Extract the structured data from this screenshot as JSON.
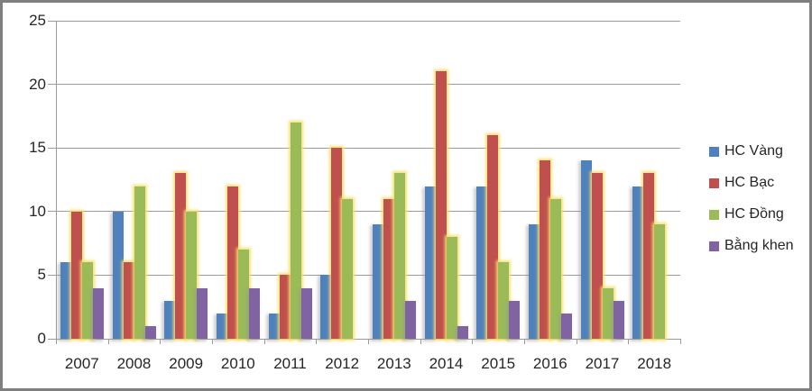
{
  "chart_data": {
    "type": "bar",
    "title": "",
    "xlabel": "",
    "ylabel": "",
    "categories": [
      "2007",
      "2008",
      "2009",
      "2010",
      "2011",
      "2012",
      "2013",
      "2014",
      "2015",
      "2016",
      "2017",
      "2018"
    ],
    "series": [
      {
        "name": "HC Vàng",
        "color": "#4F81BD",
        "glow": "gray",
        "values": [
          6,
          10,
          3,
          2,
          2,
          5,
          9,
          12,
          12,
          9,
          14,
          12
        ]
      },
      {
        "name": "HC Bạc",
        "color": "#C0504D",
        "glow": "yellow",
        "values": [
          10,
          6,
          13,
          12,
          5,
          15,
          11,
          21,
          16,
          14,
          13,
          13
        ]
      },
      {
        "name": "HC Đồng",
        "color": "#9BBB59",
        "glow": "yellow",
        "values": [
          6,
          12,
          10,
          7,
          17,
          11,
          13,
          8,
          6,
          11,
          4,
          9
        ]
      },
      {
        "name": "Bằng khen",
        "color": "#8064A2",
        "glow": "gray",
        "values": [
          4,
          1,
          4,
          4,
          4,
          0,
          3,
          1,
          3,
          2,
          3,
          0
        ]
      }
    ],
    "ylim": [
      0,
      25
    ],
    "ytick_interval": 5,
    "yticks": [
      "0",
      "5",
      "10",
      "15",
      "20",
      "25"
    ],
    "grid": true,
    "legend_position": "right",
    "colors": {
      "axis": "#9b9b9b",
      "gridline": "#9b9b9b",
      "text": "#262626",
      "frame": "#7f7f7f",
      "background": "#ffffff"
    }
  }
}
